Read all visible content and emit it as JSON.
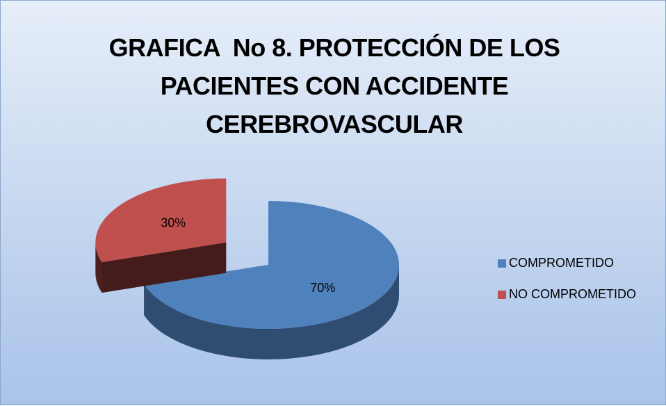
{
  "chart_data": {
    "type": "pie",
    "title": "GRAFICA  No 8. PROTECCIÓN DE LOS PACIENTES CON ACCIDENTE CEREBROVASCULAR",
    "categories": [
      "COMPROMETIDO",
      "NO COMPROMETIDO"
    ],
    "values": [
      70,
      30
    ],
    "value_labels": [
      "70%",
      "30%"
    ],
    "colors": [
      "#4f81bd",
      "#c0504d"
    ],
    "legend": "right"
  }
}
